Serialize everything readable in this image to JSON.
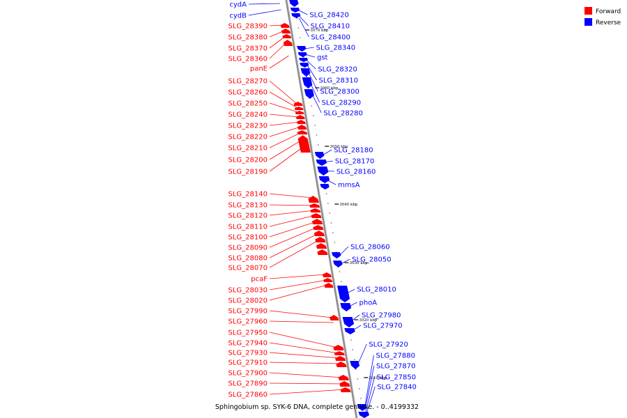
{
  "colors": {
    "forward": "#ff0000",
    "reverse": "#0000ff",
    "axis": "#8c8c8c"
  },
  "legend": [
    {
      "key": "forward",
      "label": "Forward"
    },
    {
      "key": "reverse",
      "label": "Reverse"
    }
  ],
  "caption": "Sphingobium sp. SYK-6 DNA, complete genome. - 0..4199332",
  "ticks": [
    "3070 kbp",
    "3060 kbp",
    "3050 kbp",
    "3040 kbp",
    "3030 kbp",
    "3020 kbp",
    "3010 kbp"
  ],
  "genes": {
    "forward": [
      "SLG_28390",
      "SLG_28380",
      "SLG_28370",
      "SLG_28360",
      "panE",
      "SLG_28270",
      "SLG_28260",
      "SLG_28250",
      "SLG_28240",
      "SLG_28230",
      "SLG_28220",
      "SLG_28210",
      "SLG_28200",
      "SLG_28190",
      "SLG_28140",
      "SLG_28130",
      "SLG_28120",
      "SLG_28110",
      "SLG_28100",
      "SLG_28090",
      "SLG_28080",
      "SLG_28070",
      "pcaF",
      "SLG_28030",
      "SLG_28020",
      "SLG_27990",
      "SLG_27960",
      "SLG_27950",
      "SLG_27940",
      "SLG_27930",
      "SLG_27910",
      "SLG_27900",
      "SLG_27890",
      "SLG_27860"
    ],
    "reverse_left": [
      "cydA",
      "cydB"
    ],
    "reverse": [
      "SLG_28420",
      "SLG_28410",
      "SLG_28400",
      "SLG_28340",
      "gst",
      "SLG_28320",
      "SLG_28310",
      "SLG_28300",
      "SLG_28290",
      "SLG_28280",
      "SLG_28180",
      "SLG_28170",
      "SLG_28160",
      "mmsA",
      "SLG_28060",
      "SLG_28050",
      "SLG_28010",
      "phoA",
      "SLG_27980",
      "SLG_27970",
      "SLG_27920",
      "SLG_27880",
      "SLG_27870",
      "SLG_27850",
      "SLG_27840"
    ]
  }
}
